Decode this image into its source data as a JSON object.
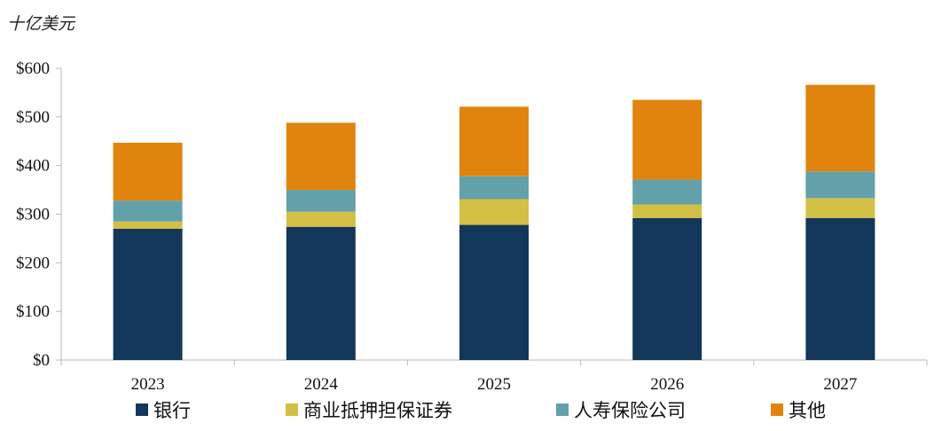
{
  "chart_data": {
    "type": "bar",
    "stacked": true,
    "unit_label": "十亿美元",
    "categories": [
      "2023",
      "2024",
      "2025",
      "2026",
      "2027"
    ],
    "series": [
      {
        "name": "银行",
        "color": "#12375a",
        "values": [
          270,
          274,
          278,
          292,
          292
        ]
      },
      {
        "name": "商业抵押担保证券",
        "color": "#d4bf45",
        "values": [
          15,
          31,
          53,
          28,
          41
        ]
      },
      {
        "name": "人寿保险公司",
        "color": "#62a1aa",
        "values": [
          43,
          45,
          47,
          51,
          55
        ]
      },
      {
        "name": "其他",
        "color": "#e0840e",
        "values": [
          119,
          138,
          143,
          164,
          178
        ]
      }
    ],
    "y_ticks": [
      "$0",
      "$100",
      "$200",
      "$300",
      "$400",
      "$500",
      "$600"
    ],
    "ylim": [
      0,
      600
    ],
    "grid": false,
    "legend_position": "bottom"
  }
}
